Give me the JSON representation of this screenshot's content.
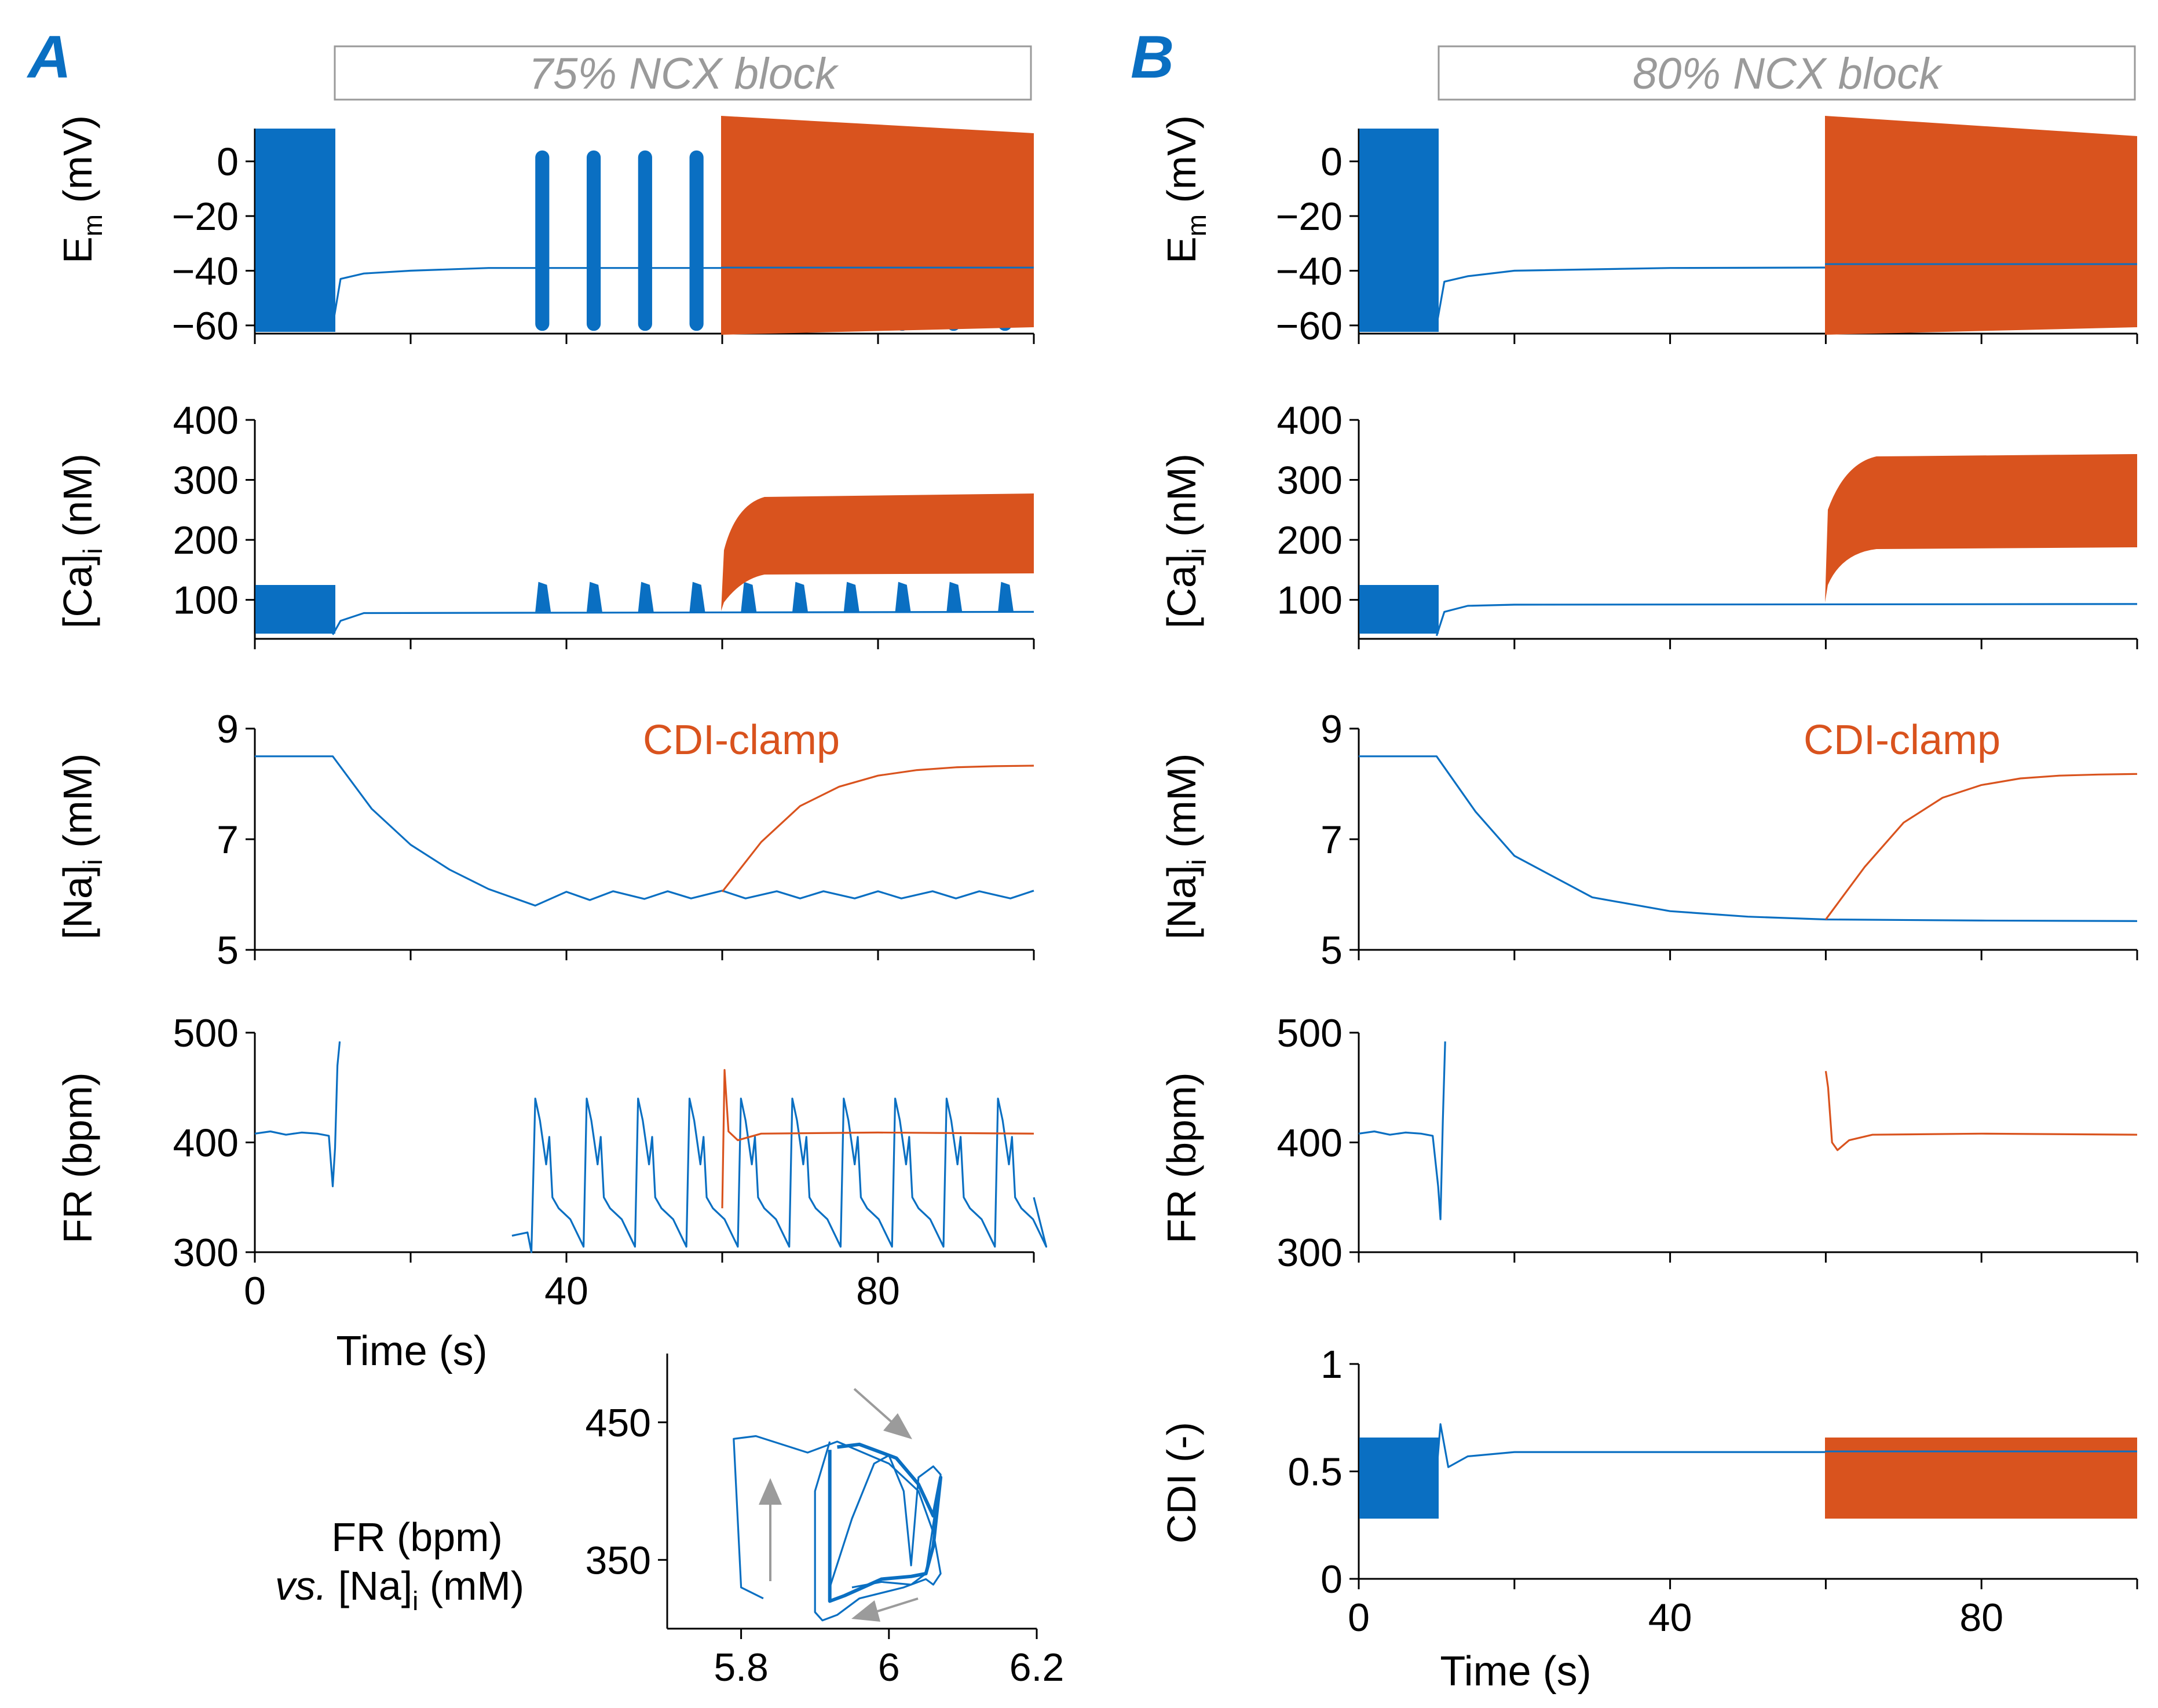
{
  "colors": {
    "blue": "#0a6fc2",
    "orange": "#d9531e",
    "grey": "#9a9a9a",
    "arrow": "#9b9b9b"
  },
  "panels": {
    "A": {
      "letter": "A",
      "banner": "75% NCX block"
    },
    "B": {
      "letter": "B",
      "banner": "80% NCX block"
    }
  },
  "axis_labels": {
    "em": "E",
    "em_sub": "m",
    "em_unit": " (mV)",
    "ca": "[Ca]",
    "ca_sub": "i",
    "ca_unit": " (nM)",
    "na": "[Na]",
    "na_sub": "i",
    "na_unit": " (mM)",
    "fr": "FR (bpm)",
    "cdi": "CDI (-)",
    "time": "Time (s)"
  },
  "annotations": {
    "clamp_label": "CDI-clamp"
  },
  "inset_label": {
    "line1": "FR (bpm)",
    "line2_prefix": "vs.",
    "line2_main": " [Na]",
    "line2_sub": "i",
    "line2_unit": " (mM)"
  },
  "chart_data": [
    {
      "id": "A-Em",
      "type": "line",
      "ylabel": "Em (mV)",
      "xlim": [
        0,
        100
      ],
      "ylim": [
        -63,
        12
      ],
      "yticks": [
        0,
        -20,
        -40,
        -60
      ],
      "series": [
        {
          "name": "control",
          "color": "blue",
          "description": "APs between -63 and 10 mV until ~10 s; resting ~-39 mV; bursts between -62 and 4 mV at ~36-100 s with ~6.6 s period"
        },
        {
          "name": "CDI-clamp",
          "color": "orange",
          "description": "continuous firing from 60 s, -62 to 12 mV decaying to 8 mV"
        }
      ]
    },
    {
      "id": "A-Ca",
      "type": "line",
      "ylabel": "[Ca]i (nM)",
      "xlim": [
        0,
        100
      ],
      "ylim": [
        35,
        400
      ],
      "yticks": [
        100,
        200,
        300,
        400
      ],
      "series": [
        {
          "name": "control",
          "color": "blue",
          "description": "oscillates 40-122 nM until 10 s; ~78 nM baseline; peaks ~132 nM during bursts"
        },
        {
          "name": "CDI-clamp",
          "color": "orange",
          "description": "from 60 s rises to 140-278 nM band"
        }
      ]
    },
    {
      "id": "A-Na",
      "type": "line",
      "ylabel": "[Na]i (mM)",
      "xlim": [
        0,
        100
      ],
      "ylim": [
        5,
        9
      ],
      "yticks": [
        5,
        7,
        9
      ],
      "series": [
        {
          "name": "control",
          "color": "blue",
          "x": [
            0,
            10,
            15,
            20,
            25,
            30,
            36,
            40,
            43,
            46,
            50,
            53,
            56,
            60,
            63,
            67,
            70,
            73,
            77,
            80,
            83,
            87,
            90,
            93,
            97,
            100
          ],
          "y": [
            8.5,
            8.5,
            7.55,
            6.9,
            6.45,
            6.1,
            5.8,
            6.05,
            5.9,
            6.06,
            5.92,
            6.06,
            5.93,
            6.07,
            5.93,
            6.06,
            5.93,
            6.06,
            5.93,
            6.06,
            5.93,
            6.06,
            5.93,
            6.06,
            5.93,
            6.07
          ]
        },
        {
          "name": "CDI-clamp",
          "color": "orange",
          "x": [
            60,
            65,
            70,
            75,
            80,
            85,
            90,
            95,
            100
          ],
          "y": [
            6.05,
            6.95,
            7.6,
            7.95,
            8.15,
            8.25,
            8.3,
            8.32,
            8.33
          ]
        }
      ]
    },
    {
      "id": "A-FR",
      "type": "line",
      "ylabel": "FR (bpm)",
      "xlim": [
        0,
        100
      ],
      "ylim": [
        300,
        500
      ],
      "yticks": [
        300,
        400,
        500
      ],
      "xticks": [
        0,
        40,
        80
      ],
      "xlabel": "Time (s)",
      "series": [
        {
          "name": "control",
          "color": "blue",
          "description": "~408 bpm then spikes 355-492 at 10 s; bursting 300-440 bpm from 33 s"
        },
        {
          "name": "CDI-clamp",
          "color": "orange",
          "description": "spike to 466 at 60 s then ~408 bpm"
        }
      ]
    },
    {
      "id": "A-inset",
      "type": "line",
      "xlabel": "[Na]i (mM)",
      "ylabel": "FR (bpm)",
      "xlim": [
        5.7,
        6.2
      ],
      "ylim": [
        300,
        500
      ],
      "xticks": [
        5.8,
        6,
        6.2
      ],
      "yticks": [
        350,
        450
      ],
      "series": [
        {
          "name": "loop",
          "color": "blue",
          "description": "hysteresis loops between 5.8-6.07 mM and 305-440 bpm"
        }
      ]
    },
    {
      "id": "B-Em",
      "type": "line",
      "ylabel": "Em (mV)",
      "xlim": [
        0,
        100
      ],
      "ylim": [
        -63,
        12
      ],
      "yticks": [
        0,
        -20,
        -40,
        -60
      ],
      "series": [
        {
          "name": "control",
          "color": "blue",
          "description": "APs until 10 s then quiescent at ~-39 mV"
        },
        {
          "name": "CDI-clamp",
          "color": "orange",
          "description": "continuous firing from 60 s"
        }
      ]
    },
    {
      "id": "B-Ca",
      "type": "line",
      "ylabel": "[Ca]i (nM)",
      "xlim": [
        0,
        100
      ],
      "ylim": [
        35,
        400
      ],
      "yticks": [
        100,
        200,
        300,
        400
      ],
      "series": [
        {
          "name": "control",
          "color": "blue",
          "description": "oscillates until 10 s, then ~92 nM"
        },
        {
          "name": "CDI-clamp",
          "color": "orange",
          "description": "from 60 s rises to 195-345 nM band"
        }
      ]
    },
    {
      "id": "B-Na",
      "type": "line",
      "ylabel": "[Na]i (mM)",
      "xlim": [
        0,
        100
      ],
      "ylim": [
        5,
        9
      ],
      "yticks": [
        5,
        7,
        9
      ],
      "series": [
        {
          "name": "control",
          "color": "blue",
          "x": [
            0,
            10,
            15,
            20,
            30,
            40,
            50,
            60,
            80,
            100
          ],
          "y": [
            8.5,
            8.5,
            7.5,
            6.7,
            5.95,
            5.7,
            5.6,
            5.55,
            5.53,
            5.52
          ]
        },
        {
          "name": "CDI-clamp",
          "color": "orange",
          "x": [
            60,
            65,
            70,
            75,
            80,
            85,
            90,
            95,
            100
          ],
          "y": [
            5.55,
            6.5,
            7.3,
            7.75,
            7.98,
            8.1,
            8.15,
            8.17,
            8.18
          ]
        }
      ]
    },
    {
      "id": "B-FR",
      "type": "line",
      "ylabel": "FR (bpm)",
      "xlim": [
        0,
        100
      ],
      "ylim": [
        300,
        500
      ],
      "yticks": [
        300,
        400,
        500
      ],
      "series": [
        {
          "name": "control",
          "color": "blue",
          "description": "~408 bpm then spike 330-492 at 10 s, no firing afterwards"
        },
        {
          "name": "CDI-clamp",
          "color": "orange",
          "description": "spike to 465 at 60 s, dip to 393, then ~407 bpm"
        }
      ]
    },
    {
      "id": "B-CDI",
      "type": "line",
      "ylabel": "CDI (-)",
      "xlim": [
        0,
        100
      ],
      "ylim": [
        0,
        1
      ],
      "yticks": [
        0,
        0.5,
        1
      ],
      "xticks": [
        0,
        40,
        80
      ],
      "xlabel": "Time (s)",
      "series": [
        {
          "name": "control",
          "color": "blue",
          "description": "oscillates 0.28-0.64 until 10 s, then ~0.59"
        },
        {
          "name": "CDI-clamp",
          "color": "orange",
          "description": "oscillates 0.28-0.64 from 60 s"
        }
      ]
    }
  ]
}
